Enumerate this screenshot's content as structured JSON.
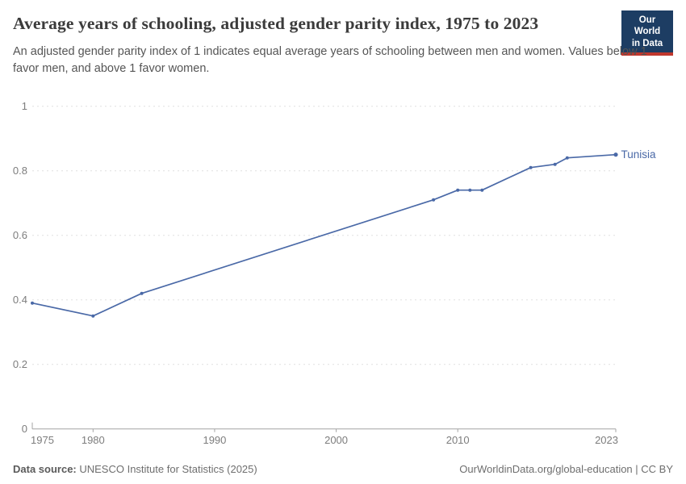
{
  "header": {
    "title": "Average years of schooling, adjusted gender parity index, 1975 to 2023",
    "subtitle": "An adjusted gender parity index of 1 indicates equal average years of schooling between men and women. Values below 1 favor men, and above 1 favor women.",
    "logo": {
      "line1": "Our World",
      "line2": "in Data",
      "bg_color": "#1d3d63",
      "accent_color": "#c0372d"
    }
  },
  "chart_data": {
    "type": "line",
    "title": "Average years of schooling, adjusted gender parity index, 1975 to 2023",
    "series": [
      {
        "name": "Tunisia",
        "color": "#4a69a7",
        "x": [
          1975,
          1980,
          1984,
          2008,
          2010,
          2011,
          2012,
          2016,
          2018,
          2019,
          2023
        ],
        "values": [
          0.39,
          0.35,
          0.42,
          0.71,
          0.74,
          0.74,
          0.74,
          0.81,
          0.82,
          0.84,
          0.85
        ]
      }
    ],
    "xlabel": "",
    "ylabel": "",
    "xlim": [
      1975,
      2023
    ],
    "ylim": [
      0,
      1
    ],
    "x_ticks": [
      1975,
      1980,
      1990,
      2000,
      2010,
      2023
    ],
    "y_ticks": [
      0,
      0.2,
      0.4,
      0.6,
      0.8,
      1
    ],
    "grid": "horizontal-dashed",
    "legend_position": "end-of-line-label",
    "end_label": "Tunisia",
    "grid_color": "#e0e0e0",
    "axis_color": "#a3a3a3",
    "tick_label_color": "#7d7d7d"
  },
  "footer": {
    "source_label": "Data source:",
    "source_text": " UNESCO Institute for Statistics (2025)",
    "credit": "OurWorldinData.org/global-education | CC BY"
  }
}
